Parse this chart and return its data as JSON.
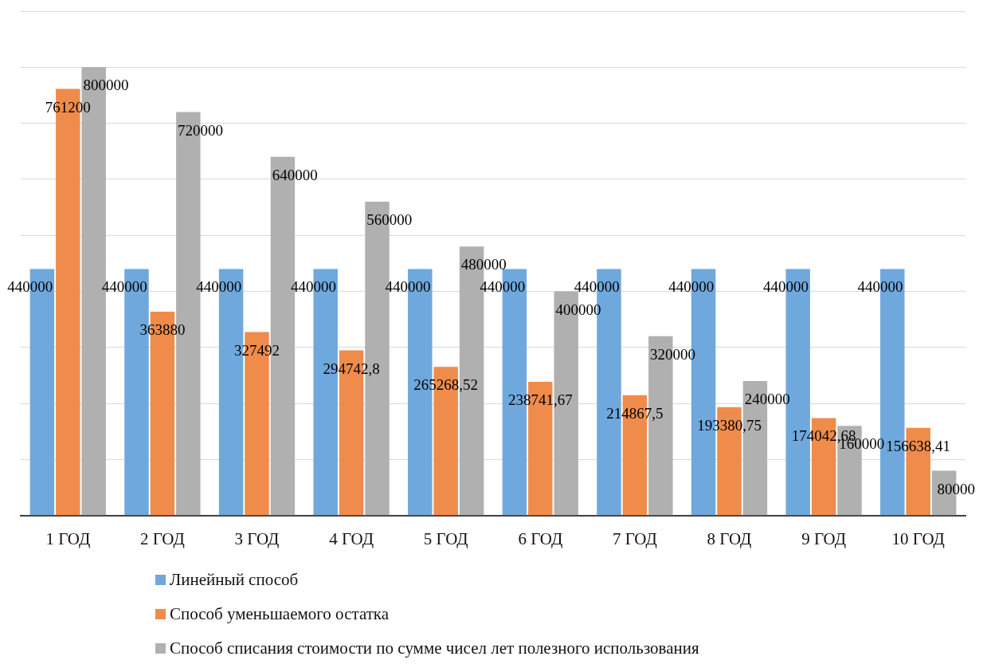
{
  "chart_data": {
    "type": "bar",
    "categories": [
      "1 ГОД",
      "2 ГОД",
      "3 ГОД",
      "4 ГОД",
      "5 ГОД",
      "6 ГОД",
      "7 ГОД",
      "8 ГОД",
      "9 ГОД",
      "10 ГОД"
    ],
    "series": [
      {
        "name": "Линейный способ",
        "color": "#6fa8dc",
        "values": [
          440000,
          440000,
          440000,
          440000,
          440000,
          440000,
          440000,
          440000,
          440000,
          440000
        ],
        "value_labels": [
          "440000",
          "440000",
          "440000",
          "440000",
          "440000",
          "440000",
          "440000",
          "440000",
          "440000",
          "440000"
        ]
      },
      {
        "name": "Способ уменьшаемого остатка",
        "color": "#ef8c4c",
        "values": [
          761200,
          363880,
          327492,
          294742.8,
          265268.52,
          238741.67,
          214867.5,
          193380.75,
          174042.68,
          156638.41
        ],
        "value_labels": [
          "761200",
          "363880",
          "327492",
          "294742,8",
          "265268,52",
          "238741,67",
          "214867,5",
          "193380,75",
          "174042,68",
          "156638,41"
        ]
      },
      {
        "name": "Способ списания стоимости по сумме чисел лет полезного использования",
        "color": "#b0b0b0",
        "values": [
          800000,
          720000,
          640000,
          560000,
          480000,
          400000,
          320000,
          240000,
          160000,
          80000
        ],
        "value_labels": [
          "800000",
          "720000",
          "640000",
          "560000",
          "480000",
          "400000",
          "320000",
          "240000",
          "160000",
          "80000"
        ]
      }
    ],
    "ylim": [
      0,
      900000
    ],
    "yticks": [
      {
        "value": 0,
        "label": null
      },
      {
        "value": 100000,
        "label": null
      },
      {
        "value": 200000,
        "label": null
      },
      {
        "value": 300000,
        "label": null
      },
      {
        "value": 400000,
        "label": null
      },
      {
        "value": 500000,
        "label": null
      },
      {
        "value": 600000,
        "label": null
      },
      {
        "value": 700000,
        "label": null
      },
      {
        "value": 800000,
        "label": null
      },
      {
        "value": 900000,
        "label": null
      }
    ],
    "tick_labels": "x",
    "grid": "y",
    "legend": "bottom"
  }
}
